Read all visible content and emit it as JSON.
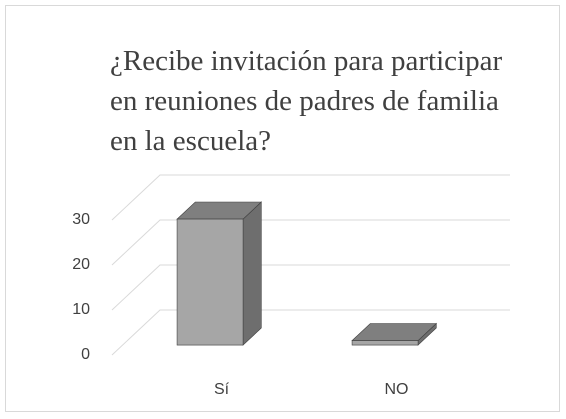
{
  "chart_data": {
    "type": "bar3d",
    "title": [
      "¿Recibe invitación para participar",
      "en reuniones de padres de familia",
      "en la escuela?"
    ],
    "categories": [
      "Sí",
      "NO"
    ],
    "values": [
      28,
      1
    ],
    "color": "#a6a6a6",
    "ylim": [
      0,
      30
    ],
    "yticks": [
      0,
      10,
      20,
      30
    ],
    "grid": true
  }
}
